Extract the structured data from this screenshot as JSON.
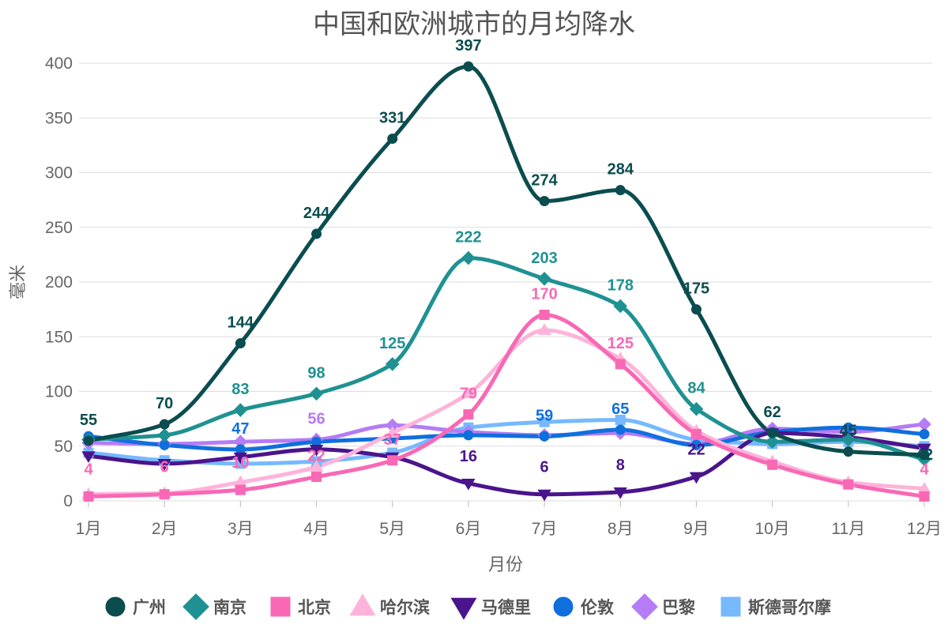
{
  "chart_data": {
    "type": "line",
    "title": "中国和欧洲城市的月均降水",
    "xlabel": "月份",
    "ylabel": "毫米",
    "categories": [
      "1月",
      "2月",
      "3月",
      "4月",
      "5月",
      "6月",
      "7月",
      "8月",
      "9月",
      "10月",
      "11月",
      "12月"
    ],
    "ylim": [
      0,
      400
    ],
    "yticks": [
      "0",
      "50",
      "100",
      "150",
      "200",
      "250",
      "300",
      "350",
      "400"
    ],
    "grid": true,
    "legend": "bottom",
    "series": [
      {
        "name": "广州",
        "color": "#0b4d4e",
        "marker": "circle",
        "values": [
          55,
          70,
          144,
          244,
          331,
          397,
          274,
          284,
          175,
          62,
          45,
          42
        ],
        "labels": [
          "55",
          "70",
          "144",
          "244",
          "331",
          "397",
          "274",
          "284",
          "175",
          "62",
          "45",
          "42"
        ]
      },
      {
        "name": "南京",
        "color": "#1f9192",
        "marker": "diamond",
        "values": [
          56,
          60,
          83,
          98,
          125,
          222,
          203,
          178,
          84,
          54,
          56,
          38
        ],
        "labels": [
          "",
          "",
          "83",
          "98",
          "125",
          "222",
          "203",
          "178",
          "84",
          "",
          "",
          ""
        ]
      },
      {
        "name": "北京",
        "color": "#f868b5",
        "marker": "square",
        "values": [
          4,
          6,
          10,
          22,
          37,
          79,
          170,
          125,
          61,
          33,
          15,
          4
        ],
        "labels": [
          "4",
          "6",
          "10",
          "22",
          "37",
          "79",
          "170",
          "125",
          "",
          "",
          "",
          "4"
        ]
      },
      {
        "name": "哈尔滨",
        "color": "#ffb3da",
        "marker": "triangle",
        "values": [
          6,
          7,
          17,
          31,
          62,
          98,
          156,
          130,
          64,
          36,
          17,
          11
        ],
        "labels": [
          "",
          "",
          "",
          "",
          "",
          "",
          "",
          "",
          "",
          "",
          "",
          ""
        ]
      },
      {
        "name": "马德里",
        "color": "#4a148c",
        "marker": "triangle-down",
        "values": [
          41,
          34,
          40,
          47,
          40,
          16,
          6,
          8,
          22,
          62,
          58,
          48
        ],
        "labels": [
          "",
          "",
          "",
          "",
          "",
          "16",
          "6",
          "8",
          "22",
          "",
          "",
          ""
        ]
      },
      {
        "name": "伦敦",
        "color": "#0f6fdd",
        "marker": "circle",
        "values": [
          59,
          51,
          47,
          54,
          57,
          60,
          59,
          65,
          51,
          63,
          67,
          61
        ],
        "labels": [
          "",
          "",
          "47",
          "",
          "",
          "",
          "59",
          "65",
          "",
          "",
          "",
          ""
        ]
      },
      {
        "name": "巴黎",
        "color": "#b57cf5",
        "marker": "diamond",
        "values": [
          53,
          52,
          54,
          56,
          69,
          63,
          60,
          62,
          52,
          66,
          63,
          70
        ],
        "labels": [
          "",
          "",
          "",
          "56",
          "",
          "",
          "",
          "",
          "",
          "",
          "",
          ""
        ]
      },
      {
        "name": "斯德哥尔摩",
        "color": "#76b9ff",
        "marker": "square",
        "values": [
          44,
          37,
          34,
          36,
          44,
          67,
          72,
          74,
          56,
          52,
          54,
          50
        ],
        "labels": [
          "",
          "",
          "",
          "",
          "",
          "",
          "",
          "",
          "",
          "",
          "",
          ""
        ]
      }
    ]
  }
}
